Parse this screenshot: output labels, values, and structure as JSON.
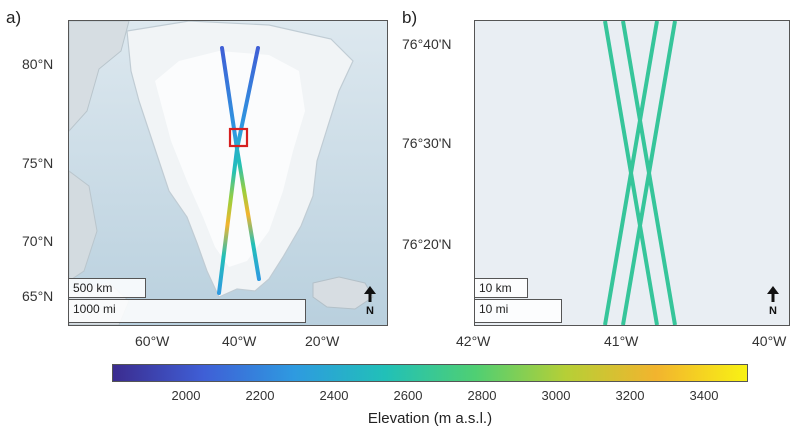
{
  "panel_a": {
    "label": "a)",
    "lat_ticks": [
      "80°N",
      "75°N",
      "70°N",
      "65°N"
    ],
    "lon_ticks": [
      "60°W",
      "40°W",
      "20°W"
    ],
    "scale_km": "500 km",
    "scale_mi": "1000 mi",
    "north": "N"
  },
  "panel_b": {
    "label": "b)",
    "lat_ticks": [
      "76°40'N",
      "76°30'N",
      "76°20'N"
    ],
    "lon_ticks": [
      "42°W",
      "41°W",
      "40°W"
    ],
    "scale_km": "10 km",
    "scale_mi": "10 mi",
    "north": "N"
  },
  "colorbar": {
    "ticks": [
      "2000",
      "2200",
      "2400",
      "2600",
      "2800",
      "3000",
      "3200",
      "3400"
    ],
    "label": "Elevation (m a.s.l.)",
    "colors": [
      "#3b2c8f",
      "#3f5fd6",
      "#2e9ae0",
      "#21c0b8",
      "#4fcf73",
      "#b6cf36",
      "#f2b42e",
      "#f8f214"
    ]
  },
  "track_color": "#36c59a",
  "box_color": "#d62020"
}
